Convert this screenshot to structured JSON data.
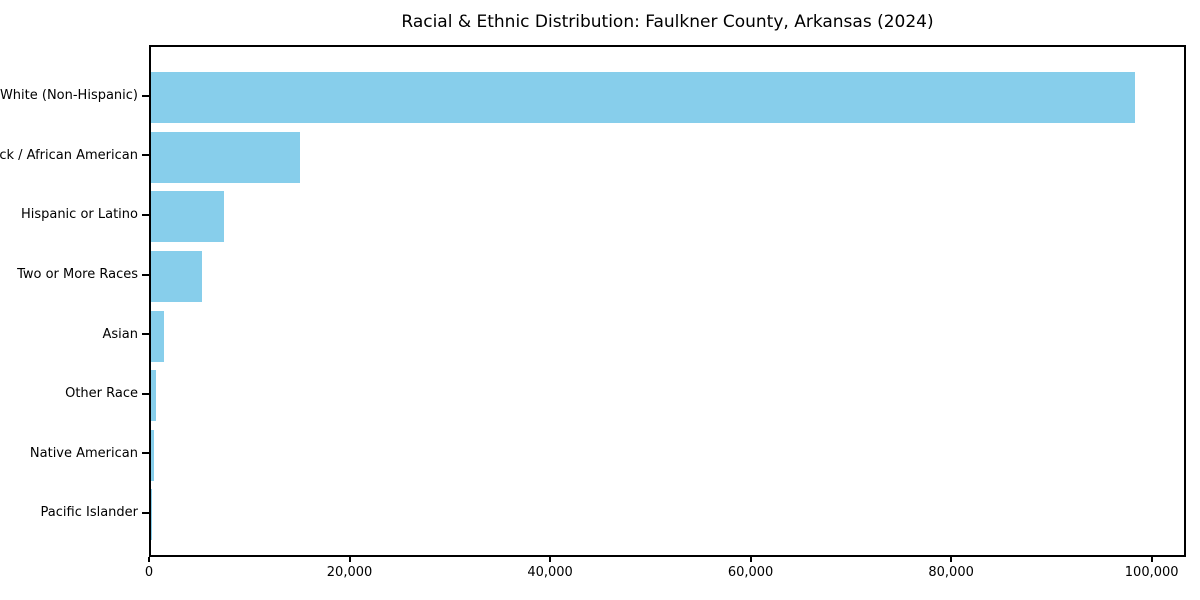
{
  "chart_data": {
    "type": "bar",
    "orientation": "horizontal",
    "title": "Racial & Ethnic Distribution: Faulkner County, Arkansas (2024)",
    "categories": [
      "White (Non-Hispanic)",
      "Black / African American",
      "Hispanic or Latino",
      "Two or More Races",
      "Asian",
      "Other Race",
      "Native American",
      "Pacific Islander"
    ],
    "values": [
      98500,
      14900,
      7350,
      5150,
      1340,
      500,
      300,
      75
    ],
    "bar_color": "#87CEEB",
    "background_color": "#ffffff",
    "frame_color": "#000000",
    "xlabel": "",
    "ylabel": "",
    "xlim": [
      0,
      103425
    ],
    "xticks": [
      0,
      20000,
      40000,
      60000,
      80000,
      100000
    ],
    "xtick_labels": [
      "0",
      "20,000",
      "40,000",
      "60,000",
      "80,000",
      "100,000"
    ],
    "grid": false,
    "legend": null
  }
}
